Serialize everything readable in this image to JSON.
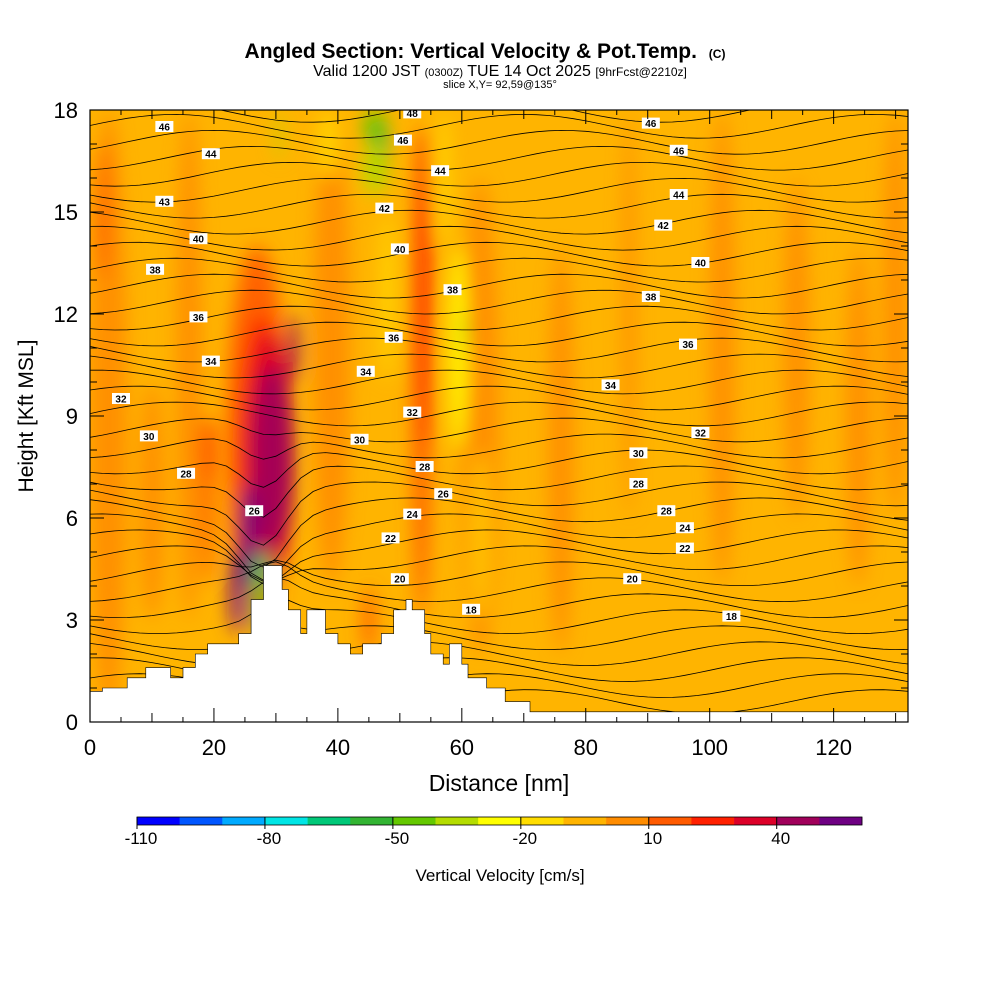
{
  "chart_data": {
    "type": "heatmap",
    "title_line1": "Angled Section: Vertical Velocity & Pot.Temp.",
    "title_unit": "(C)",
    "title_line2": [
      "Valid 1200 JST ",
      "(0300Z)",
      " TUE 14 Oct 2025 ",
      "[9hrFcst@2210z]"
    ],
    "title_line3": "slice X,Y= 92,59@135°",
    "xlabel": "Distance [nm]",
    "ylabel": "Height [Kft MSL]",
    "xlim": [
      0,
      132
    ],
    "ylim": [
      0,
      18
    ],
    "x_ticks": [
      0,
      20,
      40,
      60,
      80,
      100,
      120
    ],
    "y_ticks": [
      0,
      3,
      6,
      9,
      12,
      15,
      18
    ],
    "colorbar": {
      "label": "Vertical Velocity [cm/s]",
      "tick_labels": [
        "-110",
        "-80",
        "-50",
        "-20",
        "10",
        "40"
      ],
      "colors": [
        "#0000ff",
        "#0055ff",
        "#00aaff",
        "#00e5e5",
        "#00c878",
        "#32b432",
        "#64c800",
        "#b4dc00",
        "#ffff00",
        "#ffdd00",
        "#ffb400",
        "#ff8c00",
        "#ff5a00",
        "#ff2000",
        "#dc0028",
        "#a0005a",
        "#6e0082"
      ]
    },
    "terrain": [
      [
        0,
        0.9
      ],
      [
        2,
        0.9
      ],
      [
        2,
        1
      ],
      [
        6,
        1
      ],
      [
        6,
        1.3
      ],
      [
        9,
        1.3
      ],
      [
        9,
        1.6
      ],
      [
        13,
        1.6
      ],
      [
        13,
        1.3
      ],
      [
        15,
        1.3
      ],
      [
        15,
        1.6
      ],
      [
        17,
        1.6
      ],
      [
        17,
        2
      ],
      [
        19,
        2
      ],
      [
        19,
        2.3
      ],
      [
        24,
        2.3
      ],
      [
        24,
        2.6
      ],
      [
        26,
        2.6
      ],
      [
        26,
        3.6
      ],
      [
        28,
        3.6
      ],
      [
        28,
        4.6
      ],
      [
        31,
        4.6
      ],
      [
        31,
        3.9
      ],
      [
        32,
        3.9
      ],
      [
        32,
        3.3
      ],
      [
        34,
        3.3
      ],
      [
        34,
        2.6
      ],
      [
        35,
        2.6
      ],
      [
        35,
        3.3
      ],
      [
        38,
        3.3
      ],
      [
        38,
        2.6
      ],
      [
        40,
        2.6
      ],
      [
        40,
        2.3
      ],
      [
        42,
        2.3
      ],
      [
        42,
        2
      ],
      [
        44,
        2
      ],
      [
        44,
        2.3
      ],
      [
        47,
        2.3
      ],
      [
        47,
        2.6
      ],
      [
        49,
        2.6
      ],
      [
        49,
        3.3
      ],
      [
        51,
        3.3
      ],
      [
        51,
        3.6
      ],
      [
        52,
        3.6
      ],
      [
        52,
        3.3
      ],
      [
        54,
        3.3
      ],
      [
        54,
        2.6
      ],
      [
        55,
        2.6
      ],
      [
        55,
        2
      ],
      [
        57,
        2
      ],
      [
        57,
        1.7
      ],
      [
        58,
        1.7
      ],
      [
        58,
        2.3
      ],
      [
        60,
        2.3
      ],
      [
        60,
        1.7
      ],
      [
        61,
        1.7
      ],
      [
        61,
        1.3
      ],
      [
        64,
        1.3
      ],
      [
        64,
        1
      ],
      [
        67,
        1
      ],
      [
        67,
        0.6
      ],
      [
        71,
        0.6
      ],
      [
        71,
        0.3
      ],
      [
        132,
        0.3
      ],
      [
        132,
        0
      ],
      [
        0,
        0
      ]
    ],
    "isotherm_labels": [
      {
        "text": "46",
        "x": 12,
        "y": 17.5
      },
      {
        "text": "44",
        "x": 19.5,
        "y": 16.7
      },
      {
        "text": "43",
        "x": 12,
        "y": 15.3
      },
      {
        "text": "40",
        "x": 17.5,
        "y": 14.2
      },
      {
        "text": "38",
        "x": 10.5,
        "y": 13.3
      },
      {
        "text": "36",
        "x": 17.5,
        "y": 11.9
      },
      {
        "text": "34",
        "x": 19.5,
        "y": 10.6
      },
      {
        "text": "32",
        "x": 5,
        "y": 9.5
      },
      {
        "text": "30",
        "x": 9.5,
        "y": 8.4
      },
      {
        "text": "28",
        "x": 15.5,
        "y": 7.3
      },
      {
        "text": "26",
        "x": 26.5,
        "y": 6.2
      },
      {
        "text": "48",
        "x": 52,
        "y": 17.9
      },
      {
        "text": "46",
        "x": 50.5,
        "y": 17.1
      },
      {
        "text": "44",
        "x": 56.5,
        "y": 16.2
      },
      {
        "text": "42",
        "x": 47.5,
        "y": 15.1
      },
      {
        "text": "40",
        "x": 50,
        "y": 13.9
      },
      {
        "text": "38",
        "x": 58.5,
        "y": 12.7
      },
      {
        "text": "36",
        "x": 49,
        "y": 11.3
      },
      {
        "text": "34",
        "x": 44.5,
        "y": 10.3
      },
      {
        "text": "32",
        "x": 52,
        "y": 9.1
      },
      {
        "text": "30",
        "x": 43.5,
        "y": 8.3
      },
      {
        "text": "28",
        "x": 54,
        "y": 7.5
      },
      {
        "text": "26",
        "x": 57,
        "y": 6.7
      },
      {
        "text": "24",
        "x": 52,
        "y": 6.1
      },
      {
        "text": "22",
        "x": 48.5,
        "y": 5.4
      },
      {
        "text": "20",
        "x": 50,
        "y": 4.2
      },
      {
        "text": "18",
        "x": 61.5,
        "y": 3.3
      },
      {
        "text": "46",
        "x": 90.5,
        "y": 17.6
      },
      {
        "text": "46",
        "x": 95,
        "y": 16.8
      },
      {
        "text": "44",
        "x": 95,
        "y": 15.5
      },
      {
        "text": "42",
        "x": 92.5,
        "y": 14.6
      },
      {
        "text": "40",
        "x": 98.5,
        "y": 13.5
      },
      {
        "text": "38",
        "x": 90.5,
        "y": 12.5
      },
      {
        "text": "36",
        "x": 96.5,
        "y": 11.1
      },
      {
        "text": "34",
        "x": 84,
        "y": 9.9
      },
      {
        "text": "32",
        "x": 98.5,
        "y": 8.5
      },
      {
        "text": "30",
        "x": 88.5,
        "y": 7.9
      },
      {
        "text": "28",
        "x": 88.5,
        "y": 7
      },
      {
        "text": "28",
        "x": 93,
        "y": 6.2
      },
      {
        "text": "24",
        "x": 96,
        "y": 5.7
      },
      {
        "text": "22",
        "x": 96,
        "y": 5.1
      },
      {
        "text": "20",
        "x": 87.5,
        "y": 4.2
      },
      {
        "text": "18",
        "x": 103.5,
        "y": 3.1
      }
    ]
  }
}
